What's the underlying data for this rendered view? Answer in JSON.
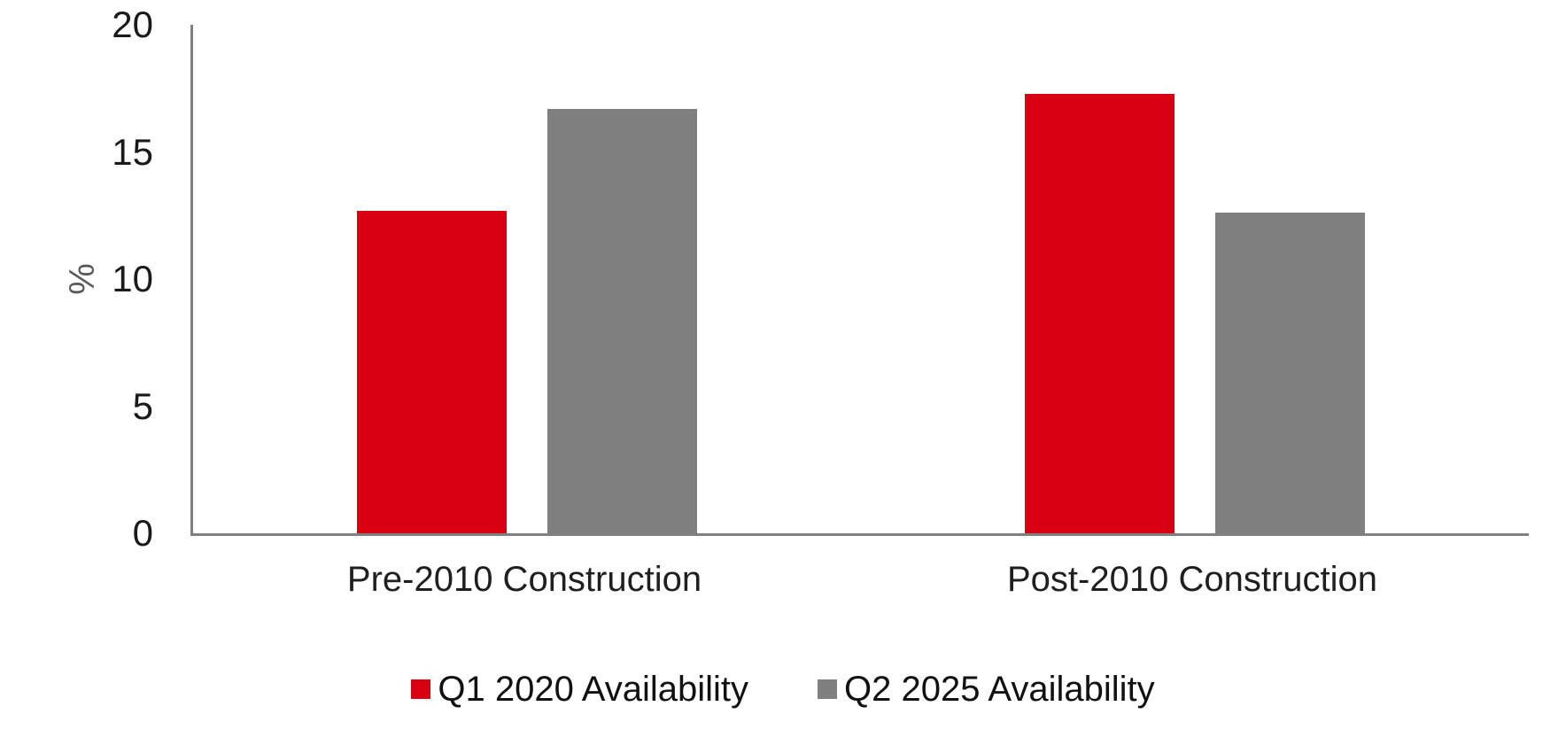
{
  "chart_data": {
    "type": "bar",
    "categories": [
      "Pre-2010 Construction",
      "Post-2010 Construction"
    ],
    "series": [
      {
        "name": "Q1 2020 Availability",
        "color": "#D90012",
        "values": [
          12.7,
          17.3
        ]
      },
      {
        "name": "Q2 2025 Availability",
        "color": "#7F7F7F",
        "values": [
          16.7,
          12.6
        ]
      }
    ],
    "title": "",
    "xlabel": "",
    "ylabel": "%",
    "ylim": [
      0,
      20
    ],
    "yticks": [
      0,
      5,
      10,
      15,
      20
    ],
    "grid": false,
    "legend_position": "bottom"
  },
  "colors": {
    "axis": "#808080",
    "tick_text": "#1a1a1a",
    "ylabel_text": "#595959",
    "series_red": "#D90012",
    "series_gray": "#7F7F7F"
  }
}
